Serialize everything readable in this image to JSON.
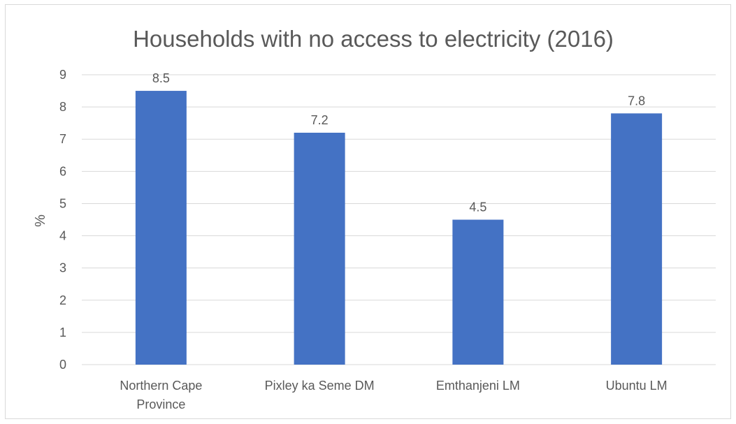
{
  "chart_data": {
    "type": "bar",
    "title": "Households with no access to electricity (2016)",
    "xlabel": "",
    "ylabel": "%",
    "categories": [
      [
        "Northern Cape",
        "Province"
      ],
      [
        "Pixley ka Seme DM"
      ],
      [
        "Emthanjeni LM"
      ],
      [
        "Ubuntu LM"
      ]
    ],
    "values": [
      8.5,
      7.2,
      4.5,
      7.8
    ],
    "data_labels": [
      "8.5",
      "7.2",
      "4.5",
      "7.8"
    ],
    "ylim": [
      0,
      9
    ],
    "yticks": [
      0,
      1,
      2,
      3,
      4,
      5,
      6,
      7,
      8,
      9
    ],
    "grid": true,
    "legend": "none",
    "colors": {
      "bar": "#4472c4",
      "grid": "#d9d9d9",
      "text": "#595959"
    }
  }
}
